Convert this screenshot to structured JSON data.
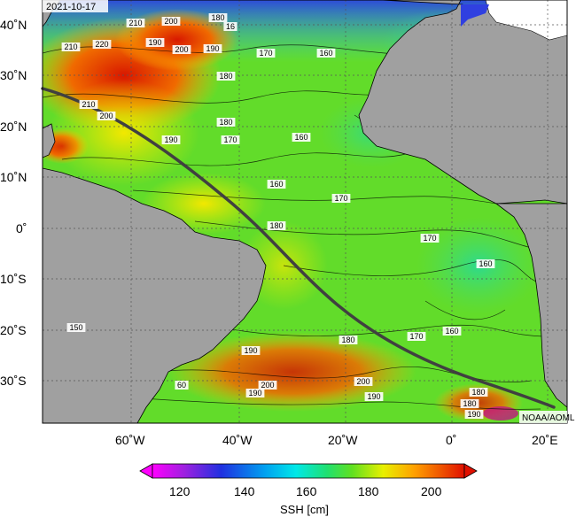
{
  "map": {
    "date": "2021-10-17",
    "credit": "NOAA/AOML",
    "lat_labels": [
      "40˚N",
      "30˚N",
      "20˚N",
      "10˚N",
      "0˚",
      "10˚S",
      "20˚S",
      "30˚S"
    ],
    "lon_labels": [
      "60˚W",
      "40˚W",
      "20˚W",
      "0˚",
      "20˚E"
    ],
    "contour_labels": [
      {
        "text": "210"
      },
      {
        "text": "200"
      },
      {
        "text": "180"
      },
      {
        "text": "16"
      },
      {
        "text": "210"
      },
      {
        "text": "220"
      },
      {
        "text": "190"
      },
      {
        "text": "200"
      },
      {
        "text": "190"
      },
      {
        "text": "170"
      },
      {
        "text": "160"
      },
      {
        "text": "180"
      },
      {
        "text": "210"
      },
      {
        "text": "200"
      },
      {
        "text": "180"
      },
      {
        "text": "170"
      },
      {
        "text": "160"
      },
      {
        "text": "190"
      },
      {
        "text": "160"
      },
      {
        "text": "170"
      },
      {
        "text": "180"
      },
      {
        "text": "170"
      },
      {
        "text": "160"
      },
      {
        "text": "150"
      },
      {
        "text": "160"
      },
      {
        "text": "170"
      },
      {
        "text": "180"
      },
      {
        "text": "190"
      },
      {
        "text": "200"
      },
      {
        "text": "190"
      },
      {
        "text": "200"
      },
      {
        "text": "190"
      },
      {
        "text": "180"
      },
      {
        "text": "190"
      },
      {
        "text": "60"
      },
      {
        "text": "180"
      }
    ],
    "colors": {
      "land": "#a0a0a0",
      "track": "#404040"
    }
  },
  "colorbar": {
    "ticks": [
      "120",
      "140",
      "160",
      "180",
      "200"
    ],
    "title": "SSH [cm]"
  }
}
